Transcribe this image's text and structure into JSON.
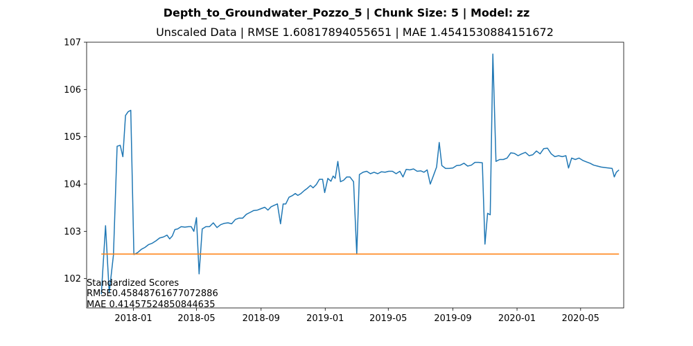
{
  "chart_data": {
    "type": "line",
    "suptitle": "Depth_to_Groundwater_Pozzo_5 | Chunk Size: 5 | Model: zz",
    "title": "Unscaled Data | RMSE 1.60817894055651 | MAE 1.4541530884151672",
    "xlabel": "",
    "ylabel": "",
    "xlim": [
      "2017-10-04",
      "2020-07-22"
    ],
    "ylim": [
      101.38,
      107.0
    ],
    "x_ticks": [
      "2018-01",
      "2018-05",
      "2018-09",
      "2019-01",
      "2019-05",
      "2019-09",
      "2020-01",
      "2020-05"
    ],
    "y_ticks": [
      102,
      103,
      104,
      105,
      106,
      107
    ],
    "grid": false,
    "legend": "none",
    "series": [
      {
        "color": "#1f77b4",
        "points": [
          [
            "2017-11-01",
            101.67
          ],
          [
            "2017-11-09",
            103.12
          ],
          [
            "2017-11-16",
            101.7
          ],
          [
            "2017-11-24",
            102.5
          ],
          [
            "2017-12-01",
            104.8
          ],
          [
            "2017-12-07",
            104.82
          ],
          [
            "2017-12-12",
            104.58
          ],
          [
            "2017-12-17",
            105.45
          ],
          [
            "2017-12-22",
            105.53
          ],
          [
            "2017-12-27",
            105.56
          ],
          [
            "2018-01-02",
            102.51
          ],
          [
            "2018-01-09",
            102.55
          ],
          [
            "2018-01-16",
            102.62
          ],
          [
            "2018-01-23",
            102.66
          ],
          [
            "2018-01-30",
            102.72
          ],
          [
            "2018-02-06",
            102.75
          ],
          [
            "2018-02-13",
            102.8
          ],
          [
            "2018-02-20",
            102.86
          ],
          [
            "2018-02-27",
            102.88
          ],
          [
            "2018-03-06",
            102.92
          ],
          [
            "2018-03-11",
            102.84
          ],
          [
            "2018-03-16",
            102.9
          ],
          [
            "2018-03-21",
            103.04
          ],
          [
            "2018-03-26",
            103.05
          ],
          [
            "2018-04-02",
            103.1
          ],
          [
            "2018-04-09",
            103.09
          ],
          [
            "2018-04-16",
            103.1
          ],
          [
            "2018-04-21",
            103.1
          ],
          [
            "2018-04-26",
            103.0
          ],
          [
            "2018-05-01",
            103.29
          ],
          [
            "2018-05-06",
            102.1
          ],
          [
            "2018-05-12",
            103.05
          ],
          [
            "2018-05-19",
            103.1
          ],
          [
            "2018-05-26",
            103.1
          ],
          [
            "2018-06-02",
            103.18
          ],
          [
            "2018-06-09",
            103.08
          ],
          [
            "2018-06-16",
            103.14
          ],
          [
            "2018-06-23",
            103.17
          ],
          [
            "2018-06-30",
            103.18
          ],
          [
            "2018-07-07",
            103.16
          ],
          [
            "2018-07-14",
            103.25
          ],
          [
            "2018-07-21",
            103.28
          ],
          [
            "2018-07-28",
            103.28
          ],
          [
            "2018-08-04",
            103.36
          ],
          [
            "2018-08-11",
            103.4
          ],
          [
            "2018-08-18",
            103.44
          ],
          [
            "2018-08-25",
            103.45
          ],
          [
            "2018-09-01",
            103.48
          ],
          [
            "2018-09-08",
            103.51
          ],
          [
            "2018-09-14",
            103.45
          ],
          [
            "2018-09-20",
            103.52
          ],
          [
            "2018-09-26",
            103.55
          ],
          [
            "2018-10-02",
            103.58
          ],
          [
            "2018-10-08",
            103.16
          ],
          [
            "2018-10-13",
            103.58
          ],
          [
            "2018-10-18",
            103.58
          ],
          [
            "2018-10-24",
            103.72
          ],
          [
            "2018-10-31",
            103.76
          ],
          [
            "2018-11-05",
            103.8
          ],
          [
            "2018-11-10",
            103.76
          ],
          [
            "2018-11-16",
            103.8
          ],
          [
            "2018-11-22",
            103.86
          ],
          [
            "2018-11-28",
            103.91
          ],
          [
            "2018-12-04",
            103.97
          ],
          [
            "2018-12-09",
            103.92
          ],
          [
            "2018-12-15",
            103.99
          ],
          [
            "2018-12-21",
            104.1
          ],
          [
            "2018-12-27",
            104.1
          ],
          [
            "2018-12-31",
            103.82
          ],
          [
            "2019-01-06",
            104.12
          ],
          [
            "2019-01-12",
            104.06
          ],
          [
            "2019-01-16",
            104.17
          ],
          [
            "2019-01-20",
            104.12
          ],
          [
            "2019-01-25",
            104.48
          ],
          [
            "2019-01-30",
            104.05
          ],
          [
            "2019-02-05",
            104.08
          ],
          [
            "2019-02-11",
            104.15
          ],
          [
            "2019-02-17",
            104.15
          ],
          [
            "2019-02-24",
            104.05
          ],
          [
            "2019-03-02",
            102.52
          ],
          [
            "2019-03-07",
            104.2
          ],
          [
            "2019-03-14",
            104.25
          ],
          [
            "2019-03-21",
            104.27
          ],
          [
            "2019-03-28",
            104.22
          ],
          [
            "2019-04-04",
            104.25
          ],
          [
            "2019-04-11",
            104.22
          ],
          [
            "2019-04-18",
            104.26
          ],
          [
            "2019-04-25",
            104.25
          ],
          [
            "2019-05-02",
            104.27
          ],
          [
            "2019-05-09",
            104.27
          ],
          [
            "2019-05-16",
            104.22
          ],
          [
            "2019-05-23",
            104.27
          ],
          [
            "2019-05-29",
            104.15
          ],
          [
            "2019-06-04",
            104.31
          ],
          [
            "2019-06-11",
            104.3
          ],
          [
            "2019-06-18",
            104.32
          ],
          [
            "2019-06-25",
            104.27
          ],
          [
            "2019-07-02",
            104.28
          ],
          [
            "2019-07-08",
            104.25
          ],
          [
            "2019-07-14",
            104.3
          ],
          [
            "2019-07-20",
            104.0
          ],
          [
            "2019-07-26",
            104.18
          ],
          [
            "2019-08-01",
            104.36
          ],
          [
            "2019-08-06",
            104.88
          ],
          [
            "2019-08-11",
            104.39
          ],
          [
            "2019-08-18",
            104.33
          ],
          [
            "2019-08-25",
            104.33
          ],
          [
            "2019-09-01",
            104.34
          ],
          [
            "2019-09-08",
            104.39
          ],
          [
            "2019-09-15",
            104.4
          ],
          [
            "2019-09-22",
            104.44
          ],
          [
            "2019-09-29",
            104.38
          ],
          [
            "2019-10-06",
            104.4
          ],
          [
            "2019-10-13",
            104.46
          ],
          [
            "2019-10-20",
            104.46
          ],
          [
            "2019-10-27",
            104.45
          ],
          [
            "2019-11-01",
            102.73
          ],
          [
            "2019-11-06",
            103.38
          ],
          [
            "2019-11-11",
            103.35
          ],
          [
            "2019-11-16",
            106.75
          ],
          [
            "2019-11-22",
            104.48
          ],
          [
            "2019-11-29",
            104.52
          ],
          [
            "2019-12-06",
            104.52
          ],
          [
            "2019-12-13",
            104.55
          ],
          [
            "2019-12-20",
            104.66
          ],
          [
            "2019-12-27",
            104.65
          ],
          [
            "2020-01-03",
            104.6
          ],
          [
            "2020-01-10",
            104.64
          ],
          [
            "2020-01-17",
            104.67
          ],
          [
            "2020-01-24",
            104.6
          ],
          [
            "2020-01-31",
            104.62
          ],
          [
            "2020-02-07",
            104.7
          ],
          [
            "2020-02-14",
            104.64
          ],
          [
            "2020-02-21",
            104.75
          ],
          [
            "2020-02-28",
            104.76
          ],
          [
            "2020-03-06",
            104.64
          ],
          [
            "2020-03-13",
            104.58
          ],
          [
            "2020-03-20",
            104.6
          ],
          [
            "2020-03-27",
            104.58
          ],
          [
            "2020-04-03",
            104.6
          ],
          [
            "2020-04-08",
            104.34
          ],
          [
            "2020-04-14",
            104.55
          ],
          [
            "2020-04-21",
            104.52
          ],
          [
            "2020-04-28",
            104.55
          ],
          [
            "2020-05-05",
            104.5
          ],
          [
            "2020-05-12",
            104.47
          ],
          [
            "2020-05-19",
            104.44
          ],
          [
            "2020-05-26",
            104.4
          ],
          [
            "2020-06-02",
            104.38
          ],
          [
            "2020-06-09",
            104.36
          ],
          [
            "2020-06-16",
            104.35
          ],
          [
            "2020-06-23",
            104.34
          ],
          [
            "2020-06-30",
            104.33
          ],
          [
            "2020-07-04",
            104.15
          ],
          [
            "2020-07-08",
            104.25
          ],
          [
            "2020-07-13",
            104.3
          ]
        ]
      },
      {
        "color": "#ff7f0e",
        "points": [
          [
            "2017-11-01",
            102.52
          ],
          [
            "2020-07-13",
            102.52
          ]
        ]
      }
    ],
    "annotations": [
      "Standardized Scores",
      "RMSE0.45848761677072886",
      "MAE 0.41457524850844635"
    ]
  }
}
